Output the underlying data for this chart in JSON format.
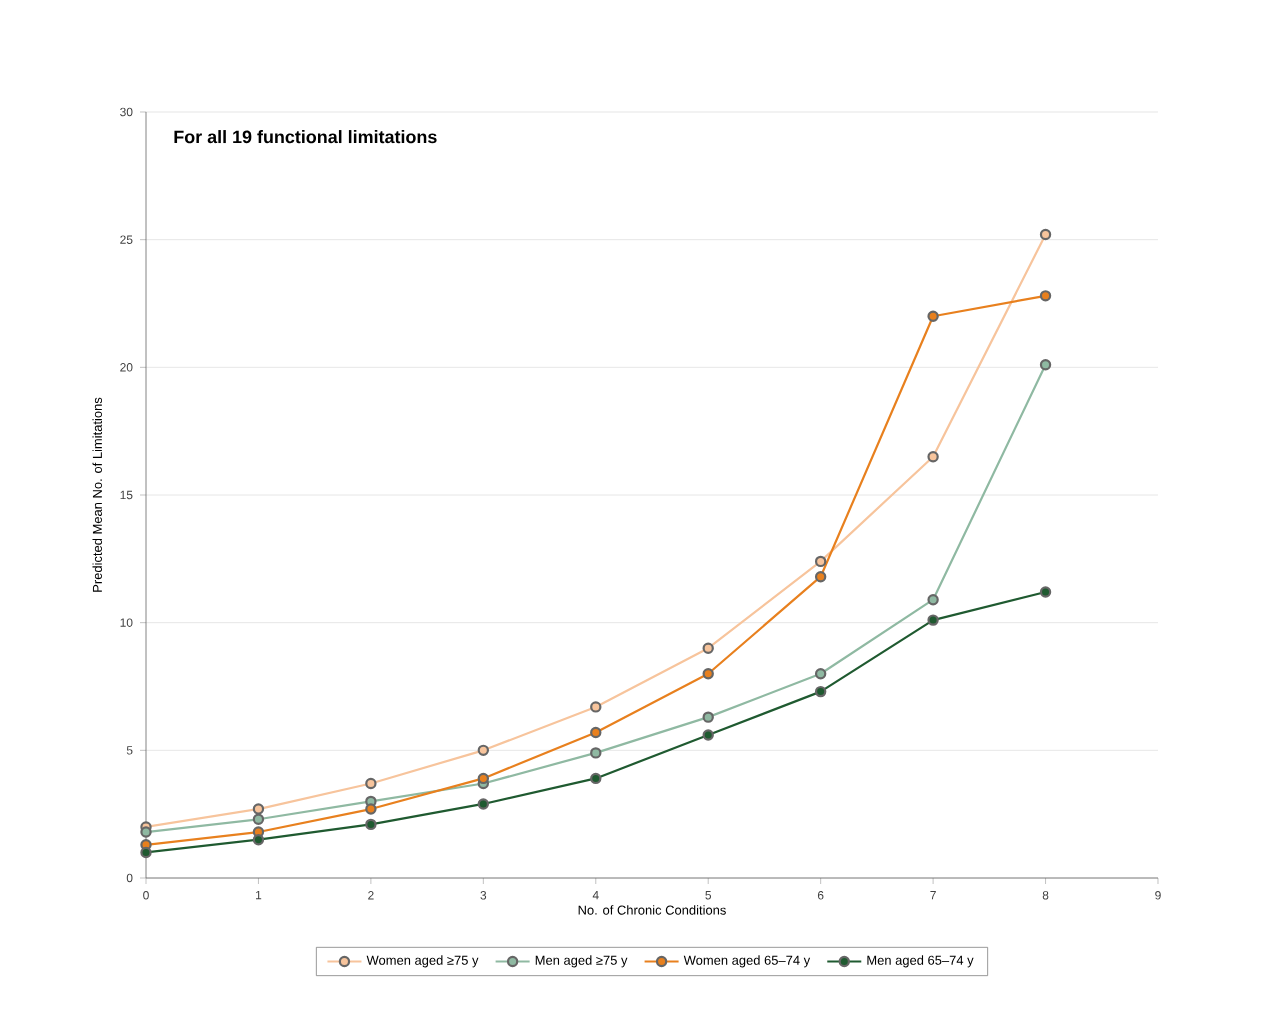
{
  "chart_data": {
    "type": "line",
    "title": "For all 19 functional limitations",
    "xlabel": "No. of Chronic Conditions",
    "ylabel": "Predicted Mean No. of Limitations",
    "x": [
      0,
      1,
      2,
      3,
      4,
      5,
      6,
      7,
      8
    ],
    "series": [
      {
        "name": "Women aged ≥75 y",
        "color": "#f7c49c",
        "values": [
          2.0,
          2.7,
          3.7,
          5.0,
          6.7,
          9.0,
          12.4,
          16.5,
          25.2
        ]
      },
      {
        "name": "Men aged ≥75 y",
        "color": "#8fb9a2",
        "values": [
          1.8,
          2.3,
          3.0,
          3.7,
          4.9,
          6.3,
          8.0,
          10.9,
          20.1
        ]
      },
      {
        "name": "Women aged 65–74 y",
        "color": "#e8801e",
        "values": [
          1.3,
          1.8,
          2.7,
          3.9,
          5.7,
          8.0,
          11.8,
          22.0,
          22.8
        ]
      },
      {
        "name": "Men aged 65–74 y",
        "color": "#1f5a30",
        "values": [
          1.0,
          1.5,
          2.1,
          2.9,
          3.9,
          5.6,
          7.3,
          10.1,
          11.2
        ]
      }
    ],
    "xlim": [
      0,
      9
    ],
    "xticks": [
      0,
      1,
      2,
      3,
      4,
      5,
      6,
      7,
      8,
      9
    ],
    "ylim": [
      0,
      30
    ],
    "yticks": [
      0,
      5,
      10,
      15,
      20,
      25,
      30
    ],
    "grid": "y",
    "legend": "bottom",
    "marker": "circle",
    "line_style": "solid"
  }
}
